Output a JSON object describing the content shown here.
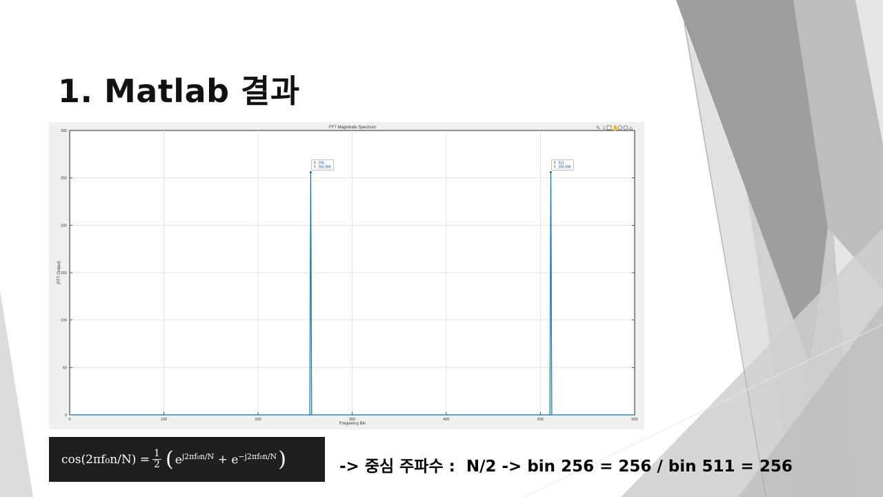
{
  "slide": {
    "title": "1. Matlab 결과",
    "caption": "-> 중심 주파수 :  N/2 -> bin 256 = 256 / bin 511 = 256"
  },
  "formula": {
    "lhs": "cos(2πf₀n/N) = ",
    "half_num": "1",
    "half_den": "2",
    "term1_base": "e",
    "term1_exp": "j2πf₀n/N",
    "plus": " + ",
    "term2_base": "e",
    "term2_exp": "−j2πf₀n/N"
  },
  "colors": {
    "line": "#0072bd",
    "tip_text": "#0b4bb3",
    "bg_gray_dark": "#9a9a9a",
    "bg_gray_light": "#d9d9d9"
  },
  "toolbar_icons": [
    "brush-icon",
    "export-icon",
    "datatip-icon",
    "pan-icon",
    "zoom-in-icon",
    "zoom-out-icon",
    "home-icon"
  ],
  "chart_data": {
    "type": "line",
    "title": "FFT Magnitude Spectrum",
    "xlabel": "Frequency Bin",
    "ylabel": "|FFT Output|",
    "xlim": [
      0,
      600
    ],
    "ylim": [
      0,
      300
    ],
    "xticks": [
      0,
      100,
      200,
      300,
      400,
      500,
      600
    ],
    "yticks": [
      0,
      50,
      100,
      150,
      200,
      250,
      300
    ],
    "grid": true,
    "series": [
      {
        "x": [
          0,
          254,
          255,
          256,
          257,
          258,
          509,
          510,
          511,
          512,
          513,
          600
        ],
        "y": [
          0,
          0,
          0,
          255.999,
          0,
          0,
          0,
          0,
          255.996,
          0,
          0,
          0
        ]
      }
    ],
    "datatips": [
      {
        "x_label": "X",
        "x": "256",
        "y_label": "Y",
        "y": "255.999"
      },
      {
        "x_label": "X",
        "x": "511",
        "y_label": "Y",
        "y": "255.996"
      }
    ]
  }
}
